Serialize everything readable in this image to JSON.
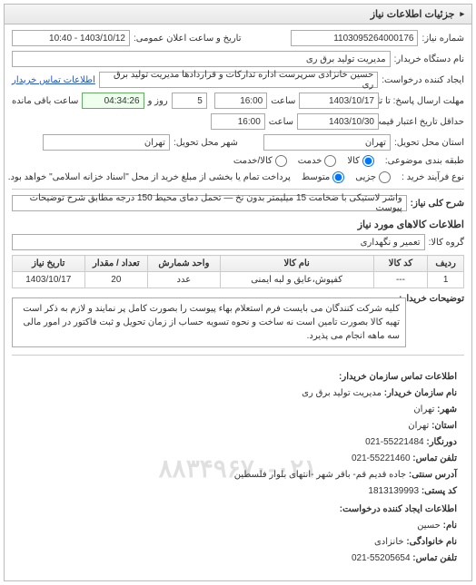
{
  "panel": {
    "title": "جزئیات اطلاعات نیاز"
  },
  "header": {
    "reqno_label": "شماره نیاز:",
    "reqno": "1103095264000176",
    "pubdate_label": "تاریخ و ساعت اعلان عمومی:",
    "pubdate": "1403/10/12 - 10:40",
    "buyer_label": "نام دستگاه خریدار:",
    "buyer": "مدیریت تولید برق ری",
    "requester_label": "ایجاد کننده درخواست:",
    "requester": "حسین خانزادی سرپرست اداره تدارکات و قراردادها مدیریت تولید برق ری",
    "contact_link": "اطلاعات تماس خریدار"
  },
  "deadlines": {
    "reply_until_label": "مهلت ارسال پاسخ: تا تاریخ:",
    "reply_date": "1403/10/17",
    "reply_time_label": "ساعت",
    "reply_time": "16:00",
    "remaining_days": "5",
    "days_lbl": "روز و",
    "remaining_time": "04:34:26",
    "remaining_lbl2": "ساعت باقی مانده",
    "valid_until_label": "حداقل تاریخ اعتبار قیمت: تا تاریخ:",
    "valid_date": "1403/10/30",
    "valid_time_label": "ساعت",
    "valid_time": "16:00"
  },
  "location": {
    "province_label": "استان محل تحویل:",
    "province": "تهران",
    "city_label": "شهر محل تحویل:",
    "city": "تهران"
  },
  "budget": {
    "label": "طبقه بندی موضوعی:",
    "opt_goods": "کالا",
    "opt_service": "خدمت",
    "opt_goods_service": "کالا/خدمت"
  },
  "proc": {
    "label": "نوع فرآیند خرید :",
    "opt_small": "جزیی",
    "opt_medium": "متوسط",
    "note": "پرداخت تمام یا بخشی از مبلغ خرید از محل \"اسناد خزانه اسلامی\" خواهد بود."
  },
  "subject": {
    "label": "شرح کلی نیاز:",
    "text": "واشر لاستیکی با ضخامت 15 میلیمتر بدون نخ — تحمل دمای محیط 150 درجه مطابق شرح توضیحات پیوست"
  },
  "items_section": {
    "title": "اطلاعات کالاهای مورد نیاز",
    "group_label": "گروه کالا:",
    "group": "تعمیر و نگهداری"
  },
  "table": {
    "columns": [
      "ردیف",
      "کد کالا",
      "نام کالا",
      "واحد شمارش",
      "تعداد / مقدار",
      "تاریخ نیاز"
    ],
    "rows": [
      [
        "1",
        "---",
        "کفپوش،عایق و لبه ایمنی",
        "عدد",
        "20",
        "1403/10/17"
      ]
    ],
    "widths": [
      "8%",
      "12%",
      "34%",
      "16%",
      "14%",
      "16%"
    ]
  },
  "buyer_notes": {
    "label": "توضیحات خریدار:",
    "text": "کلیه شرکت کنندگان می بایست فرم استعلام بهاء پیوست را بصورت کامل پر نمایند و لازم به ذکر است تهیه کالا بصورت تامین است نه ساخت و نحوه تسویه حساب از زمان تحویل و ثبت فاکتور در امور مالی سه ماهه انجام می پذیرد."
  },
  "org_contact": {
    "title": "اطلاعات تماس سازمان خریدار:",
    "lines": [
      {
        "k": "نام سازمان خریدار:",
        "v": "مدیریت تولید برق ری"
      },
      {
        "k": "شهر:",
        "v": "تهران"
      },
      {
        "k": "استان:",
        "v": "تهران"
      },
      {
        "k": "دورنگار:",
        "v": "55221484-021"
      },
      {
        "k": "تلفن تماس:",
        "v": "55221460-021"
      },
      {
        "k": "آدرس سنتی:",
        "v": "جاده قدیم قم- باقر شهر -انتهای بلوار فلسطین"
      },
      {
        "k": "کد پستی:",
        "v": "1813139993"
      }
    ],
    "creator_title": "اطلاعات ایجاد کننده درخواست:",
    "creator_lines": [
      {
        "k": "نام:",
        "v": "حسین"
      },
      {
        "k": "نام خانوادگی:",
        "v": "خانزادی"
      },
      {
        "k": "تلفن تماس:",
        "v": "55205654-021"
      }
    ],
    "watermark": "۸۸۳۴۹۶۷۰-۰۲۱"
  }
}
